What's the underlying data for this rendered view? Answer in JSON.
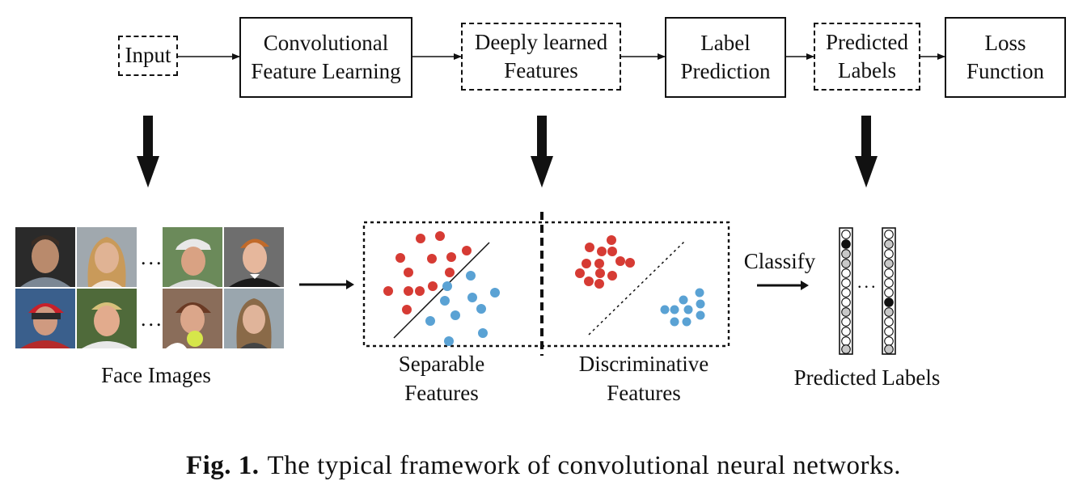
{
  "pipeline": {
    "input": "Input",
    "conv_line1": "Convolutional",
    "conv_line2": "Feature Learning",
    "deep_line1": "Deeply learned",
    "deep_line2": "Features",
    "label_line1": "Label",
    "label_line2": "Prediction",
    "pred_line1": "Predicted",
    "pred_line2": "Labels",
    "loss_line1": "Loss",
    "loss_line2": "Function"
  },
  "bottom": {
    "face_images_label": "Face Images",
    "ellipsis": "...",
    "separable_line1": "Separable",
    "separable_line2": "Features",
    "discriminative_line1": "Discriminative",
    "discriminative_line2": "Features",
    "classify_label": "Classify",
    "predicted_labels": "Predicted Labels",
    "vector_ellipsis": "..."
  },
  "caption": {
    "fig_label": "Fig. 1.",
    "text": "The typical framework of convolutional neural networks."
  },
  "colors": {
    "red_class": "#d63b34",
    "blue_class": "#5aa2d4",
    "filled_cell": "#c8c8c8",
    "active_cell": "#111111"
  },
  "icons": {
    "face_photos": "face-photo-icon",
    "arrows": "down-arrow-icon"
  }
}
